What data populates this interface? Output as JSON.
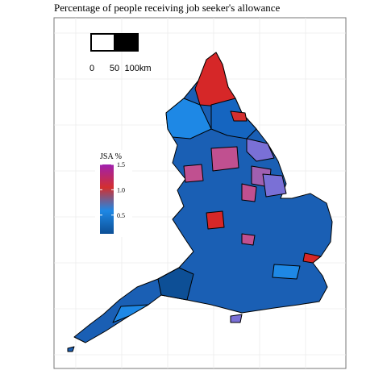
{
  "title": "Percentage of people receiving job seeker's allowance",
  "scale_bar": {
    "labels": [
      "0",
      "50",
      "100km"
    ]
  },
  "legend": {
    "title": "JSA %",
    "ticks": [
      1.5,
      {
        "value": 1,
        "label": "1.0"
      },
      0.5
    ],
    "lim": [
      0.13,
      1.5
    ],
    "colors": [
      "#0d4f96",
      "#1e88e5",
      "#d32f2f",
      "#a020b0"
    ]
  }
}
